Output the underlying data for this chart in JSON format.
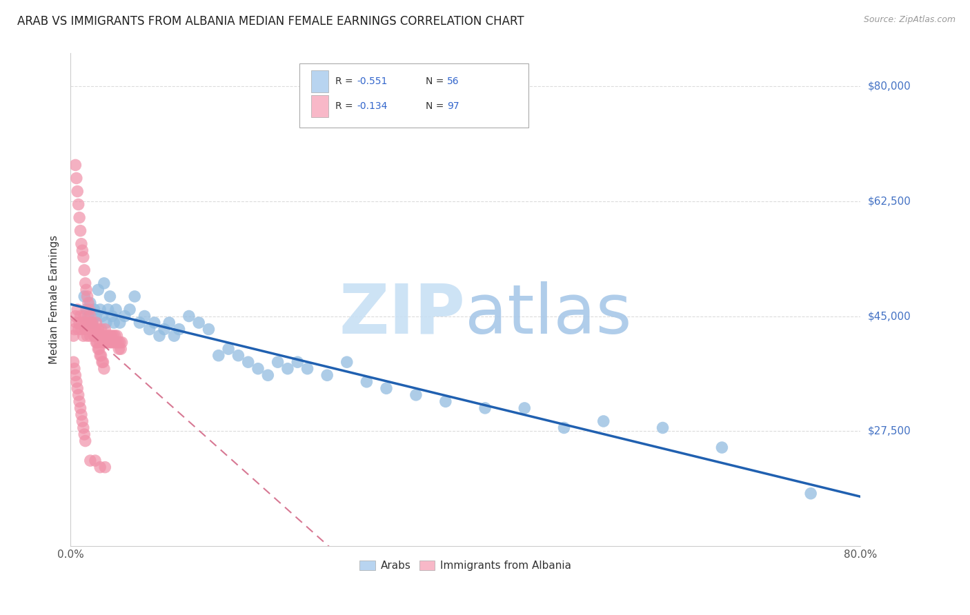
{
  "title": "ARAB VS IMMIGRANTS FROM ALBANIA MEDIAN FEMALE EARNINGS CORRELATION CHART",
  "source": "Source: ZipAtlas.com",
  "ylabel": "Median Female Earnings",
  "watermark_zip": "ZIP",
  "watermark_atlas": "atlas",
  "xlim": [
    0.0,
    0.8
  ],
  "ylim": [
    10000,
    85000
  ],
  "ytick_vals": [
    27500,
    45000,
    62500,
    80000
  ],
  "ytick_labels": [
    "$27,500",
    "$45,000",
    "$62,500",
    "$80,000"
  ],
  "xtick_vals": [
    0.0,
    0.2,
    0.4,
    0.6,
    0.8
  ],
  "xtick_labels": [
    "0.0%",
    "",
    "",
    "",
    "80.0%"
  ],
  "arab_color": "#92bce0",
  "albania_color": "#f090a8",
  "arab_line_color": "#2060b0",
  "albania_line_color": "#d06080",
  "legend_blue_fill": "#b8d4f0",
  "legend_pink_fill": "#f8b8c8",
  "title_fontsize": 12,
  "axis_label_fontsize": 11,
  "tick_fontsize": 11,
  "background_color": "#ffffff",
  "grid_color": "#cccccc",
  "arab_x": [
    0.014,
    0.016,
    0.018,
    0.02,
    0.022,
    0.024,
    0.026,
    0.028,
    0.03,
    0.032,
    0.034,
    0.036,
    0.038,
    0.04,
    0.042,
    0.044,
    0.046,
    0.05,
    0.055,
    0.06,
    0.065,
    0.07,
    0.075,
    0.08,
    0.085,
    0.09,
    0.095,
    0.1,
    0.105,
    0.11,
    0.12,
    0.13,
    0.14,
    0.15,
    0.16,
    0.17,
    0.18,
    0.19,
    0.2,
    0.21,
    0.22,
    0.23,
    0.24,
    0.26,
    0.28,
    0.3,
    0.32,
    0.35,
    0.38,
    0.42,
    0.46,
    0.5,
    0.54,
    0.6,
    0.66,
    0.75
  ],
  "arab_y": [
    48000,
    46000,
    45000,
    47000,
    44000,
    46000,
    45000,
    49000,
    46000,
    45000,
    50000,
    44000,
    46000,
    48000,
    45000,
    44000,
    46000,
    44000,
    45000,
    46000,
    48000,
    44000,
    45000,
    43000,
    44000,
    42000,
    43000,
    44000,
    42000,
    43000,
    45000,
    44000,
    43000,
    39000,
    40000,
    39000,
    38000,
    37000,
    36000,
    38000,
    37000,
    38000,
    37000,
    36000,
    38000,
    35000,
    34000,
    33000,
    32000,
    31000,
    31000,
    28000,
    29000,
    28000,
    25000,
    18000
  ],
  "albania_x": [
    0.003,
    0.004,
    0.005,
    0.006,
    0.007,
    0.008,
    0.009,
    0.01,
    0.011,
    0.012,
    0.013,
    0.014,
    0.015,
    0.016,
    0.017,
    0.018,
    0.019,
    0.02,
    0.021,
    0.022,
    0.023,
    0.024,
    0.025,
    0.026,
    0.027,
    0.028,
    0.029,
    0.03,
    0.031,
    0.032,
    0.033,
    0.034,
    0.035,
    0.036,
    0.037,
    0.038,
    0.039,
    0.04,
    0.041,
    0.042,
    0.043,
    0.044,
    0.045,
    0.046,
    0.047,
    0.048,
    0.049,
    0.05,
    0.051,
    0.052,
    0.005,
    0.006,
    0.007,
    0.008,
    0.009,
    0.01,
    0.011,
    0.012,
    0.013,
    0.014,
    0.015,
    0.016,
    0.017,
    0.018,
    0.019,
    0.02,
    0.021,
    0.022,
    0.023,
    0.024,
    0.025,
    0.026,
    0.027,
    0.028,
    0.029,
    0.03,
    0.031,
    0.032,
    0.033,
    0.034,
    0.003,
    0.004,
    0.005,
    0.006,
    0.007,
    0.008,
    0.009,
    0.01,
    0.011,
    0.012,
    0.013,
    0.014,
    0.015,
    0.02,
    0.025,
    0.03,
    0.035
  ],
  "albania_y": [
    42000,
    43000,
    45000,
    44000,
    46000,
    43000,
    44000,
    45000,
    43000,
    44000,
    42000,
    45000,
    43000,
    44000,
    42000,
    43000,
    44000,
    42000,
    43000,
    44000,
    43000,
    42000,
    43000,
    44000,
    42000,
    43000,
    42000,
    41000,
    43000,
    42000,
    41000,
    42000,
    43000,
    41000,
    42000,
    41000,
    42000,
    41000,
    42000,
    41000,
    42000,
    41000,
    42000,
    41000,
    42000,
    41000,
    40000,
    41000,
    40000,
    41000,
    68000,
    66000,
    64000,
    62000,
    60000,
    58000,
    56000,
    55000,
    54000,
    52000,
    50000,
    49000,
    48000,
    47000,
    46000,
    45000,
    44000,
    43000,
    43000,
    42000,
    42000,
    41000,
    41000,
    40000,
    40000,
    39000,
    39000,
    38000,
    38000,
    37000,
    38000,
    37000,
    36000,
    35000,
    34000,
    33000,
    32000,
    31000,
    30000,
    29000,
    28000,
    27000,
    26000,
    23000,
    23000,
    22000,
    22000
  ]
}
